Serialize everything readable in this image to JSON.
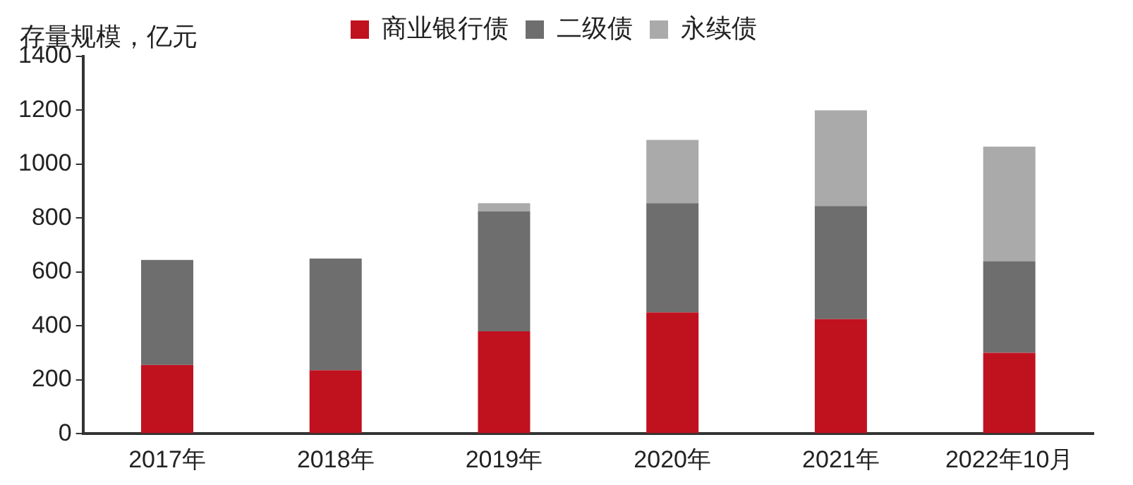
{
  "chart_data": {
    "type": "bar",
    "ylabel": "存量规模，亿元",
    "categories": [
      "2017年",
      "2018年",
      "2019年",
      "2020年",
      "2021年",
      "2022年10月"
    ],
    "series": [
      {
        "name": "商业银行债",
        "color": "#c0111f",
        "values": [
          255,
          235,
          380,
          450,
          425,
          300
        ]
      },
      {
        "name": "二级债",
        "color": "#6e6e6e",
        "values": [
          390,
          415,
          445,
          405,
          420,
          340
        ]
      },
      {
        "name": "永续债",
        "color": "#aaaaaa",
        "values": [
          0,
          0,
          30,
          235,
          355,
          425
        ]
      }
    ],
    "stacked": true,
    "ylim": [
      0,
      1400
    ],
    "yticks": [
      0,
      200,
      400,
      600,
      800,
      1000,
      1200,
      1400
    ],
    "grid": false,
    "legend": "top"
  }
}
